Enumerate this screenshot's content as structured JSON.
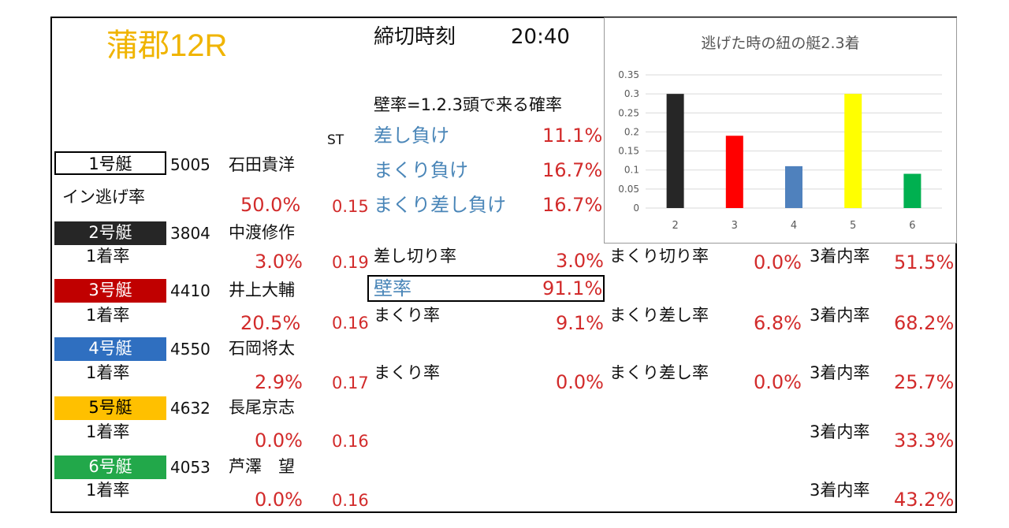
{
  "title": "蒲郡12R",
  "deadline_label": "締切時刻",
  "deadline_time": "20:40",
  "wall_def": "壁率=1.2.3頭で来る確率",
  "st_label": "ST",
  "loss": [
    {
      "label": "差し負け",
      "value": "11.1%"
    },
    {
      "label": "まくり負け",
      "value": "16.7%"
    },
    {
      "label": "まくり差し負け",
      "value": "16.7%"
    }
  ],
  "boats": [
    {
      "label": "1号艇",
      "num": "5005",
      "name": "石田貴洋",
      "rate_label": "イン逃げ率",
      "rate": "50.0%",
      "st": "0.15",
      "color": "#ffffff",
      "text_color": "#000000"
    },
    {
      "label": "2号艇",
      "num": "3804",
      "name": "中渡修作",
      "rate_label": "1着率",
      "rate": "3.0%",
      "st": "0.19",
      "color": "#262626",
      "text_color": "#ffffff"
    },
    {
      "label": "3号艇",
      "num": "4410",
      "name": "井上大輔",
      "rate_label": "1着率",
      "rate": "20.5%",
      "st": "0.16",
      "color": "#c00000",
      "text_color": "#ffffff"
    },
    {
      "label": "4号艇",
      "num": "4550",
      "name": "石岡将太",
      "rate_label": "1着率",
      "rate": "2.9%",
      "st": "0.17",
      "color": "#2f6fc0",
      "text_color": "#ffffff"
    },
    {
      "label": "5号艇",
      "num": "4632",
      "name": "長尾京志",
      "rate_label": "1着率",
      "rate": "0.0%",
      "st": "0.16",
      "color": "#ffc000",
      "text_color": "#000000"
    },
    {
      "label": "6号艇",
      "num": "4053",
      "name": "芦澤　望",
      "rate_label": "1着率",
      "rate": "0.0%",
      "st": "0.16",
      "color": "#22a84a",
      "text_color": "#ffffff"
    }
  ],
  "stats": {
    "b2": {
      "a_label": "差し切り率",
      "a": "3.0%",
      "b_label": "まくり切り率",
      "b": "0.0%",
      "c_label": "3着内率",
      "c": "51.5%"
    },
    "wall": {
      "label": "壁率",
      "value": "91.1%"
    },
    "b3": {
      "a_label": "まくり率",
      "a": "9.1%",
      "b_label": "まくり差し率",
      "b": "6.8%",
      "c_label": "3着内率",
      "c": "68.2%"
    },
    "b4": {
      "a_label": "まくり率",
      "a": "0.0%",
      "b_label": "まくり差し率",
      "b": "0.0%",
      "c_label": "3着内率",
      "c": "25.7%"
    },
    "b5": {
      "c_label": "3着内率",
      "c": "33.3%"
    },
    "b6": {
      "c_label": "3着内率",
      "c": "43.2%"
    }
  },
  "chart_data": {
    "type": "bar",
    "title": "逃げた時の紐の艇2.3着",
    "categories": [
      "2",
      "3",
      "4",
      "5",
      "6"
    ],
    "values": [
      0.3,
      0.19,
      0.11,
      0.3,
      0.09
    ],
    "colors": [
      "#262626",
      "#ff0000",
      "#4f81bd",
      "#ffff00",
      "#00b050"
    ],
    "ylim": [
      0,
      0.35
    ],
    "yticks": [
      "0",
      "0.05",
      "0.1",
      "0.15",
      "0.2",
      "0.25",
      "0.3",
      "0.35"
    ],
    "grid": true,
    "legend": "none"
  }
}
